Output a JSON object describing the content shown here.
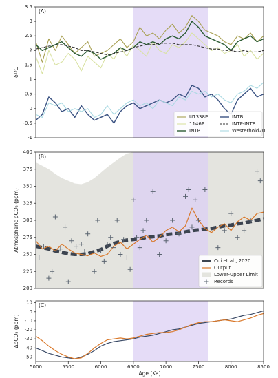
{
  "chart_data": [
    {
      "type": "line",
      "annotation": "(A)",
      "ylabel": "δ¹³C",
      "legend": "lower right",
      "highlight": [
        6500,
        7650
      ],
      "highlight_color": "#dcd0f4",
      "xlim": [
        5000,
        8500
      ],
      "ylim": [
        -1,
        3.5
      ],
      "yticks": [
        -1,
        -0.5,
        0,
        0.5,
        1,
        1.5,
        2,
        2.5,
        3,
        3.5
      ],
      "x": [
        5000,
        5100,
        5200,
        5300,
        5400,
        5500,
        5600,
        5700,
        5800,
        5900,
        6000,
        6100,
        6200,
        6300,
        6400,
        6500,
        6600,
        6700,
        6800,
        6900,
        7000,
        7100,
        7200,
        7300,
        7400,
        7500,
        7600,
        7700,
        7800,
        7900,
        8000,
        8100,
        8200,
        8300,
        8400,
        8500
      ],
      "series": [
        {
          "name": "U1338P",
          "type": "line",
          "color": "#a8a052",
          "linewidth": 1.1,
          "values": [
            2.3,
            1.6,
            2.4,
            2.0,
            2.5,
            2.2,
            1.9,
            2.1,
            2.3,
            1.8,
            1.9,
            2.0,
            2.2,
            2.4,
            2.1,
            2.3,
            2.8,
            2.5,
            2.6,
            2.4,
            2.7,
            2.9,
            2.6,
            2.8,
            3.2,
            3.0,
            2.7,
            2.6,
            2.5,
            2.3,
            2.2,
            2.5,
            2.4,
            2.6,
            2.3,
            2.5
          ]
        },
        {
          "name": "1146P",
          "type": "line",
          "color": "#d9e2a2",
          "linewidth": 1.1,
          "values": [
            1.8,
            1.2,
            2.0,
            1.5,
            1.6,
            1.9,
            1.7,
            1.3,
            1.8,
            1.6,
            1.4,
            1.9,
            1.7,
            2.1,
            1.8,
            2.2,
            2.0,
            1.8,
            2.3,
            2.0,
            1.9,
            2.2,
            2.1,
            2.3,
            2.6,
            2.4,
            2.2,
            2.0,
            2.1,
            1.9,
            2.0,
            2.2,
            1.8,
            2.0,
            1.7,
            1.9
          ]
        },
        {
          "name": "INTP",
          "type": "line",
          "color": "#2c5c34",
          "linewidth": 1.4,
          "values": [
            2.2,
            2.0,
            2.1,
            2.2,
            2.3,
            2.1,
            1.9,
            1.8,
            2.0,
            1.9,
            1.7,
            1.8,
            1.9,
            2.1,
            2.0,
            2.1,
            2.3,
            2.2,
            2.3,
            2.2,
            2.4,
            2.5,
            2.4,
            2.6,
            3.0,
            2.8,
            2.5,
            2.4,
            2.3,
            2.2,
            2.0,
            2.3,
            2.4,
            2.5,
            2.3,
            2.4
          ]
        },
        {
          "name": "INTB",
          "type": "line",
          "color": "#3a5282",
          "linewidth": 1.4,
          "values": [
            -0.4,
            -0.2,
            0.4,
            0.2,
            -0.1,
            0.0,
            -0.3,
            0.1,
            -0.2,
            -0.4,
            -0.3,
            -0.2,
            -0.5,
            -0.1,
            0.1,
            0.2,
            0.0,
            0.1,
            0.2,
            0.3,
            0.2,
            0.3,
            0.5,
            0.4,
            0.8,
            0.7,
            0.4,
            0.5,
            0.3,
            0.0,
            -0.2,
            0.3,
            0.5,
            0.7,
            0.4,
            0.5
          ]
        },
        {
          "name": "INTP-INTB",
          "type": "line",
          "color": "#333333",
          "linewidth": 1.1,
          "linestyle": "dashed",
          "values": [
            2.05,
            2.1,
            2.15,
            2.2,
            2.2,
            2.15,
            2.1,
            2.0,
            2.0,
            1.95,
            1.9,
            1.85,
            1.9,
            1.95,
            2.0,
            2.1,
            2.15,
            2.2,
            2.2,
            2.25,
            2.25,
            2.25,
            2.2,
            2.2,
            2.2,
            2.15,
            2.1,
            2.05,
            2.05,
            2.0,
            2.0,
            1.95,
            2.0,
            1.95,
            1.95,
            2.0
          ]
        },
        {
          "name": "Westerhold20",
          "type": "line",
          "color": "#a9d9e2",
          "linewidth": 1.1,
          "values": [
            -0.2,
            -0.3,
            0.2,
            0.1,
            0.2,
            -0.1,
            0.0,
            -0.1,
            0.0,
            -0.3,
            -0.2,
            0.1,
            -0.2,
            0.0,
            0.2,
            0.3,
            0.1,
            0.2,
            0.0,
            0.3,
            0.2,
            0.1,
            0.4,
            0.3,
            0.6,
            0.5,
            0.6,
            0.4,
            0.5,
            0.3,
            0.2,
            0.5,
            0.6,
            0.8,
            0.7,
            0.9
          ]
        }
      ]
    },
    {
      "type": "line",
      "annotation": "(B)",
      "ylabel": "Atmospheric pCO₂ (ppm)",
      "legend": "lower right",
      "highlight": [
        6500,
        7650
      ],
      "highlight_color": "#dcd0f4",
      "xlim": [
        5000,
        8500
      ],
      "ylim": [
        200,
        400
      ],
      "yticks": [
        200,
        225,
        250,
        275,
        300,
        325,
        350,
        375,
        400
      ],
      "x": [
        5000,
        5100,
        5200,
        5300,
        5400,
        5500,
        5600,
        5700,
        5800,
        5900,
        6000,
        6100,
        6200,
        6300,
        6400,
        6500,
        6600,
        6700,
        6800,
        6900,
        7000,
        7100,
        7200,
        7300,
        7400,
        7500,
        7600,
        7700,
        7800,
        7900,
        8000,
        8100,
        8200,
        8300,
        8400,
        8500
      ],
      "series": [
        {
          "name": "Cui et al., 2020",
          "type": "line",
          "color": "#3c4450",
          "linewidth": 5,
          "linestyle": "dashed",
          "values": [
            262,
            260,
            258,
            255,
            253,
            251,
            250,
            250,
            251,
            254,
            257,
            262,
            266,
            269,
            271,
            272,
            273,
            275,
            276,
            277,
            279,
            280,
            281,
            283,
            285,
            286,
            287,
            288,
            290,
            292,
            293,
            295,
            296,
            298,
            300,
            302
          ]
        },
        {
          "name": "Output",
          "type": "line",
          "color": "#d9782a",
          "linewidth": 1.2,
          "values": [
            270,
            258,
            262,
            255,
            265,
            258,
            252,
            250,
            248,
            252,
            247,
            250,
            262,
            268,
            258,
            265,
            272,
            278,
            268,
            275,
            285,
            290,
            283,
            292,
            318,
            300,
            288,
            282,
            290,
            295,
            285,
            298,
            305,
            300,
            310,
            312
          ]
        },
        {
          "name": "Lower-Upper Limit",
          "type": "band",
          "color": "#e4e4df",
          "upper": [
            385,
            380,
            375,
            368,
            362,
            358,
            354,
            353,
            356,
            362,
            370,
            378,
            385,
            392,
            398,
            400,
            400,
            400,
            400,
            400,
            400,
            400,
            400,
            400,
            400,
            400,
            400,
            400,
            400,
            400,
            400,
            400,
            400,
            400,
            400,
            400
          ],
          "lower": [
            200,
            200,
            200,
            200,
            200,
            200,
            200,
            200,
            200,
            200,
            200,
            200,
            200,
            200,
            200,
            200,
            200,
            200,
            200,
            200,
            200,
            200,
            200,
            200,
            200,
            200,
            200,
            200,
            200,
            200,
            200,
            200,
            200,
            200,
            200,
            200
          ]
        },
        {
          "name": "Records",
          "type": "scatter",
          "color": "#5a6470",
          "x": [
            5050,
            5120,
            5200,
            5250,
            5300,
            5380,
            5450,
            5500,
            5550,
            5620,
            5700,
            5750,
            5800,
            5900,
            5950,
            6000,
            6050,
            6100,
            6150,
            6200,
            6250,
            6300,
            6350,
            6400,
            6450,
            6500,
            6550,
            6600,
            6650,
            6700,
            6800,
            6900,
            7000,
            7100,
            7200,
            7300,
            7350,
            7400,
            7450,
            7500,
            7600,
            7800,
            7900,
            8000,
            8100,
            8200,
            8300,
            8400,
            8450
          ],
          "values": [
            245,
            262,
            215,
            225,
            305,
            258,
            290,
            210,
            270,
            262,
            265,
            255,
            280,
            225,
            300,
            255,
            240,
            265,
            275,
            260,
            300,
            250,
            272,
            245,
            228,
            330,
            275,
            260,
            285,
            300,
            342,
            250,
            270,
            300,
            280,
            335,
            345,
            290,
            330,
            300,
            345,
            260,
            285,
            310,
            275,
            285,
            300,
            372,
            358
          ]
        }
      ]
    },
    {
      "type": "line",
      "annotation": "(C)",
      "ylabel": "ΔpCO₂ (ppm)",
      "xlabel": "Age (Ka)",
      "highlight": [
        6500,
        7650
      ],
      "highlight_color": "#dcd0f4",
      "xlim": [
        5000,
        8500
      ],
      "xticks": [
        5000,
        5500,
        6000,
        6500,
        7000,
        7500,
        8000,
        8500
      ],
      "ylim": [
        -55,
        12
      ],
      "yticks": [
        -50,
        -40,
        -30,
        -20,
        -10,
        0,
        10
      ],
      "x": [
        5000,
        5100,
        5200,
        5300,
        5400,
        5500,
        5600,
        5700,
        5800,
        5900,
        6000,
        6100,
        6200,
        6300,
        6400,
        6500,
        6600,
        6700,
        6800,
        6900,
        7000,
        7100,
        7200,
        7300,
        7400,
        7500,
        7600,
        7700,
        7800,
        7900,
        8000,
        8100,
        8200,
        8300,
        8400,
        8500
      ],
      "series": [
        {
          "type": "line",
          "color": "#3a4a66",
          "linewidth": 1.2,
          "values": [
            -40,
            -43,
            -46,
            -48,
            -50,
            -51,
            -52,
            -50,
            -47,
            -43,
            -38,
            -35,
            -33,
            -32,
            -31,
            -30,
            -28,
            -27,
            -26,
            -24,
            -22,
            -20,
            -19,
            -17,
            -15,
            -13,
            -12,
            -11,
            -10,
            -9,
            -8,
            -6,
            -4,
            -3,
            -1,
            1
          ]
        },
        {
          "type": "line",
          "color": "#d9782a",
          "linewidth": 1.2,
          "values": [
            -27,
            -32,
            -38,
            -43,
            -47,
            -50,
            -52,
            -51,
            -46,
            -40,
            -35,
            -31,
            -30,
            -29,
            -30,
            -29,
            -27,
            -25,
            -24,
            -23,
            -23,
            -22,
            -20,
            -17,
            -14,
            -12,
            -11,
            -11,
            -10,
            -9,
            -10,
            -11,
            -9,
            -7,
            -4,
            -2
          ]
        }
      ]
    }
  ]
}
